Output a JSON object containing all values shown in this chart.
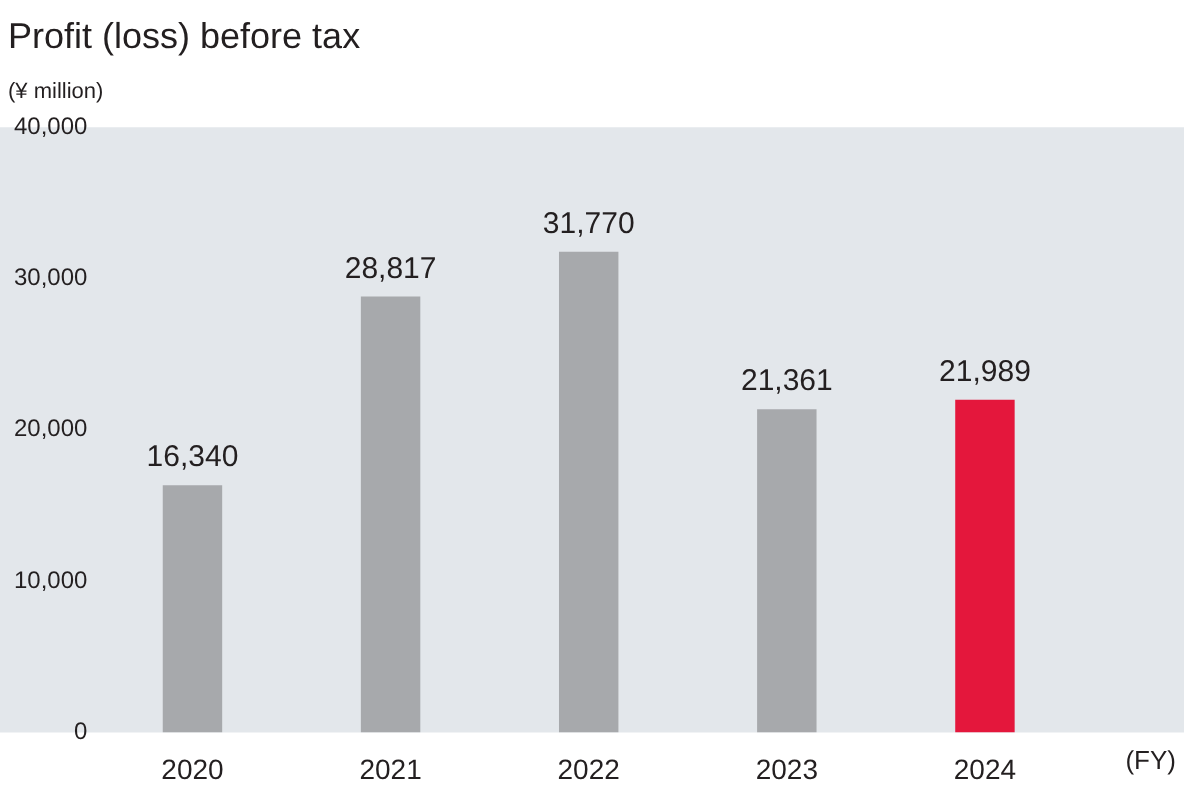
{
  "chart_data": {
    "type": "bar",
    "title": "Profit (loss) before tax",
    "ylabel": "(¥ million)",
    "xlabel": "(FY)",
    "categories": [
      "2020",
      "2021",
      "2022",
      "2023",
      "2024"
    ],
    "values": [
      16340,
      28817,
      31770,
      21361,
      21989
    ],
    "value_labels": [
      "16,340",
      "28,817",
      "31,770",
      "21,361",
      "21,989"
    ],
    "colors": [
      "#a7a9ac",
      "#a7a9ac",
      "#a7a9ac",
      "#a7a9ac",
      "#e4173c"
    ],
    "ylim": [
      0,
      40000
    ],
    "yticks": [
      0,
      {
        "value": 10000,
        "label": "10,000"
      },
      {
        "value": 20000,
        "label": "20,000"
      },
      {
        "value": 30000,
        "label": "30,000"
      },
      {
        "value": 40000,
        "label": "40,000"
      }
    ],
    "grid": false,
    "legend": false
  }
}
